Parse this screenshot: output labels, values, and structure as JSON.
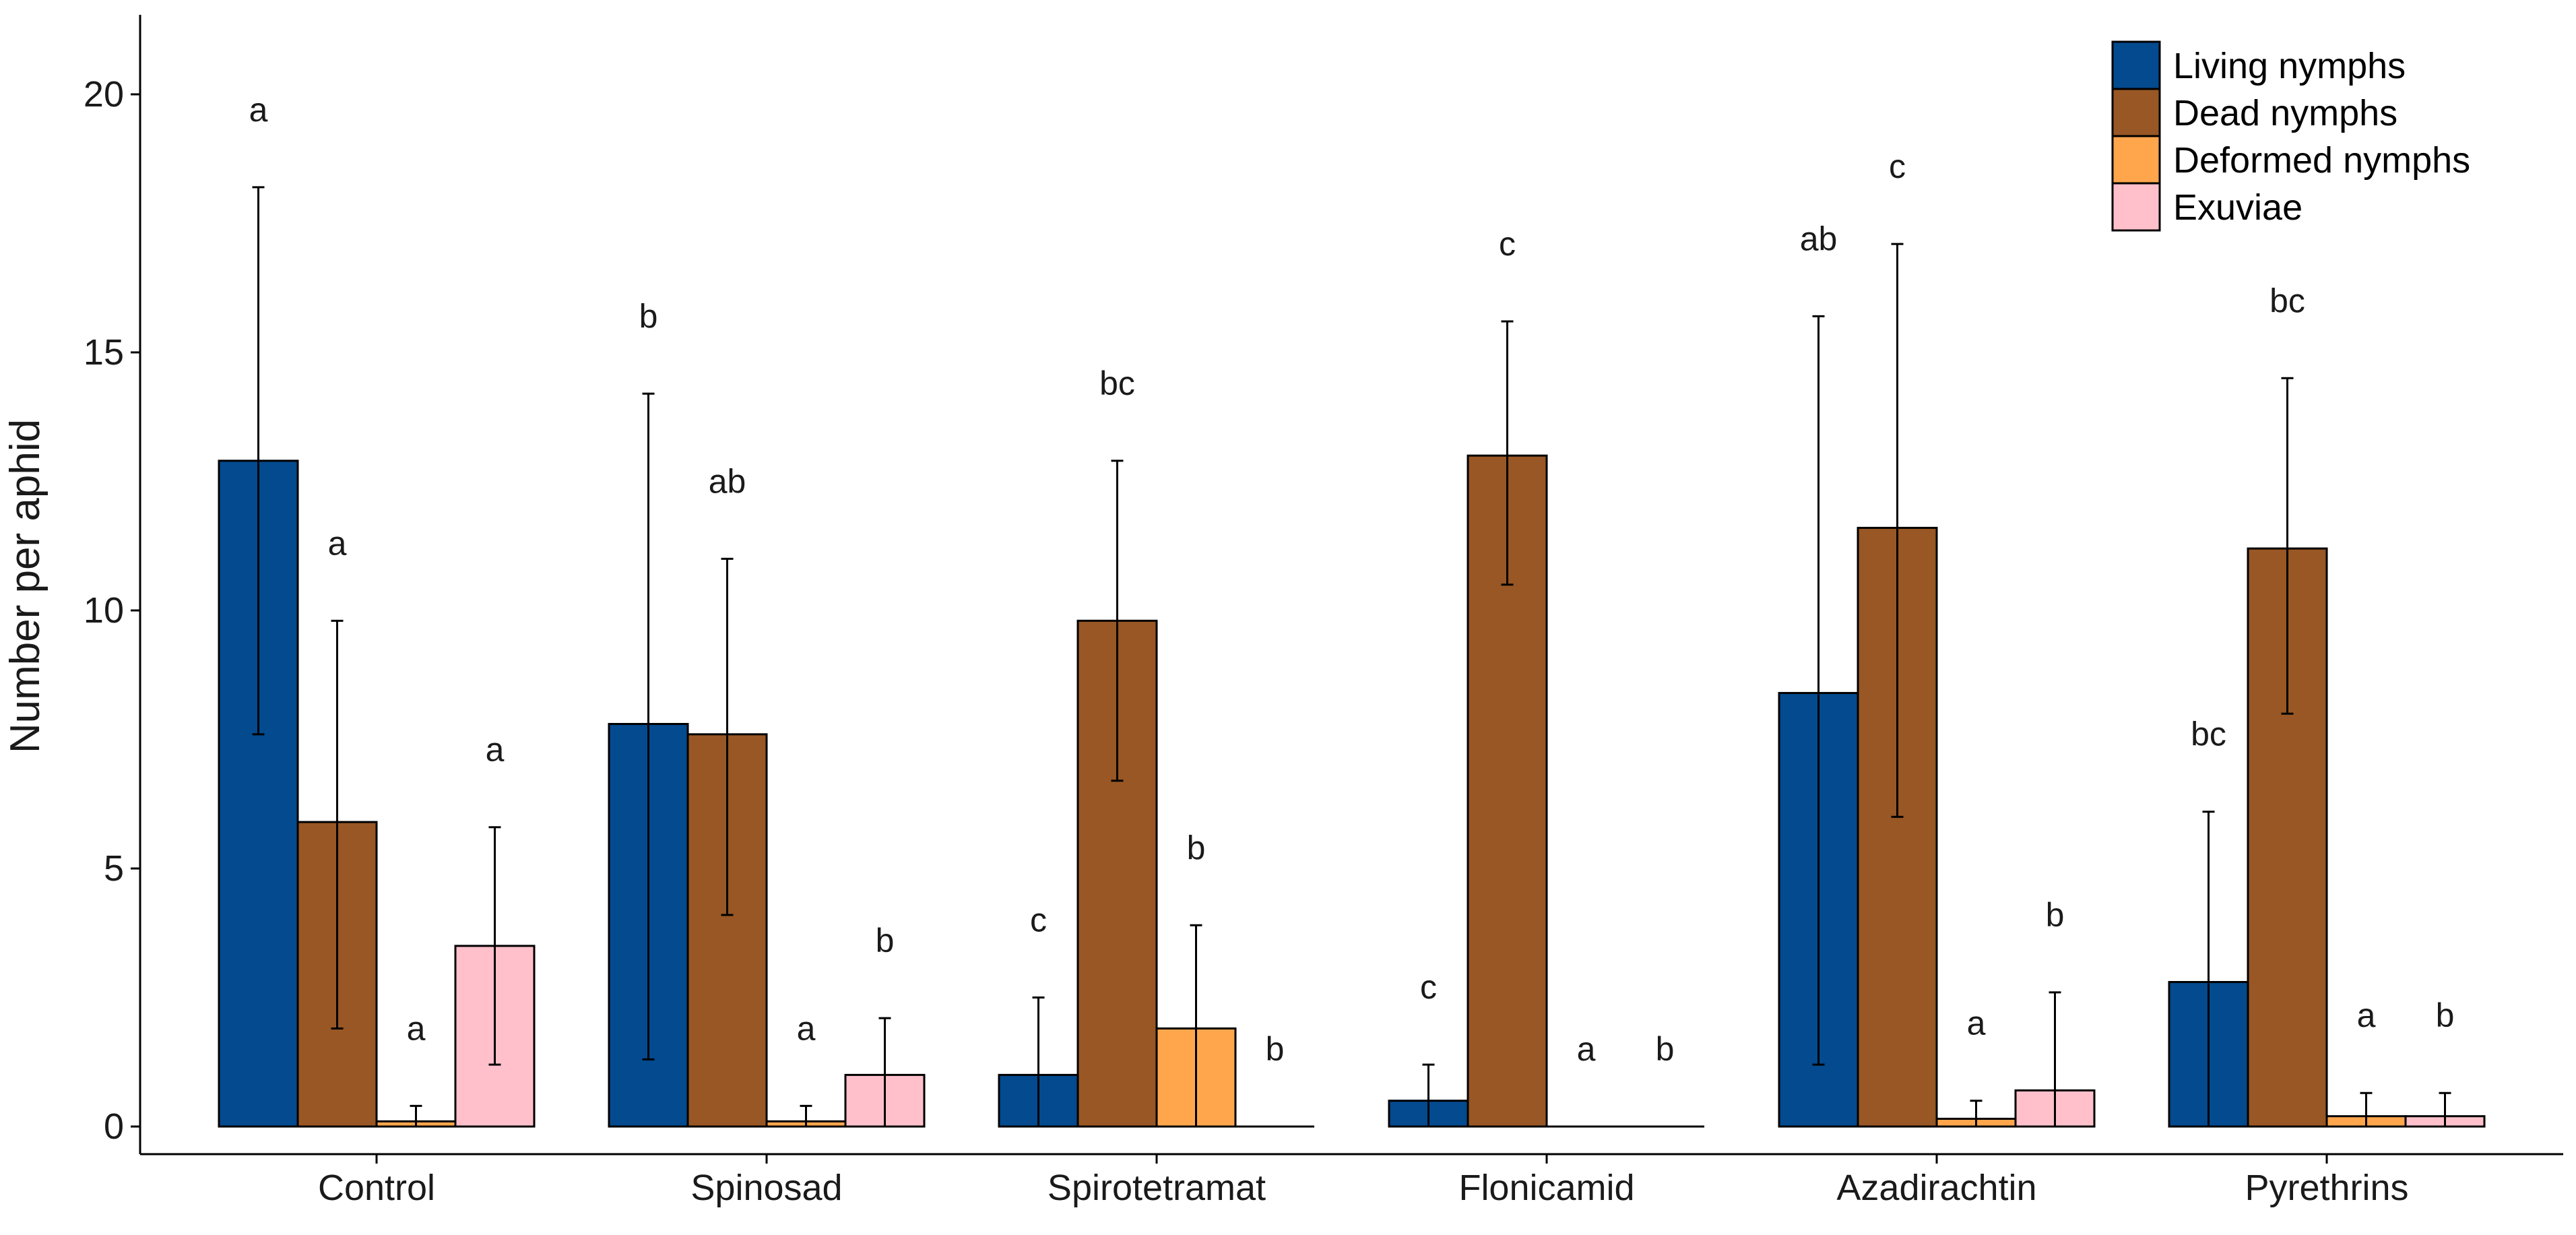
{
  "chart_data": {
    "type": "bar",
    "title": "",
    "xlabel": "",
    "ylabel": "Number per aphid",
    "ylim": [
      0,
      21.5
    ],
    "yticks": [
      0,
      5,
      10,
      15,
      20
    ],
    "categories": [
      "Control",
      "Spinosad",
      "Spirotetramat",
      "Flonicamid",
      "Azadirachtin",
      "Pyrethrins"
    ],
    "legend_position": "top-right",
    "series": [
      {
        "name": "Living nymphs",
        "color": "#034a8f",
        "values": [
          12.9,
          7.8,
          1.0,
          0.5,
          8.4,
          2.8
        ],
        "err_low": [
          7.6,
          1.3,
          0.0,
          0.0,
          1.2,
          0.0
        ],
        "err_high": [
          18.2,
          14.2,
          2.5,
          1.2,
          15.7,
          6.1
        ],
        "letters": [
          "a",
          "b",
          "c",
          "c",
          "ab",
          "bc"
        ]
      },
      {
        "name": "Dead nymphs",
        "color": "#985724",
        "values": [
          5.9,
          7.6,
          9.8,
          13.0,
          11.6,
          11.2
        ],
        "err_low": [
          1.9,
          4.1,
          6.7,
          10.5,
          6.0,
          8.0
        ],
        "err_high": [
          9.8,
          11.0,
          12.9,
          15.6,
          17.1,
          14.5
        ],
        "letters": [
          "a",
          "ab",
          "bc",
          "c",
          "c",
          "bc"
        ]
      },
      {
        "name": "Deformed nymphs",
        "color": "#ffa64d",
        "values": [
          0.1,
          0.1,
          1.9,
          0.0,
          0.15,
          0.2
        ],
        "err_low": [
          0.0,
          0.0,
          0.0,
          null,
          0.0,
          0.0
        ],
        "err_high": [
          0.4,
          0.4,
          3.9,
          null,
          0.5,
          0.65
        ],
        "letters": [
          "a",
          "a",
          "b",
          "a",
          "a",
          "a"
        ]
      },
      {
        "name": "Exuviae",
        "color": "#ffc0cb",
        "values": [
          3.5,
          1.0,
          0.0,
          0.0,
          0.7,
          0.2
        ],
        "err_low": [
          1.2,
          0.0,
          null,
          null,
          0.0,
          0.0
        ],
        "err_high": [
          5.8,
          2.1,
          null,
          null,
          2.6,
          0.65
        ],
        "letters": [
          "a",
          "b",
          "b",
          "b",
          "b",
          "b"
        ]
      }
    ]
  }
}
